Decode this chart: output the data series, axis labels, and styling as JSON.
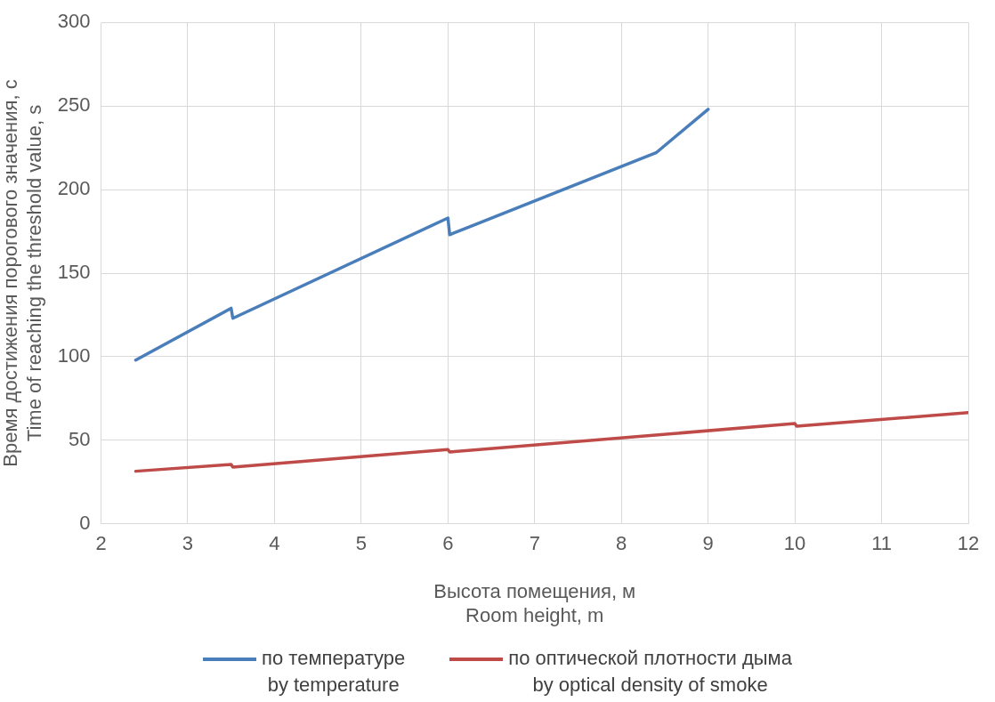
{
  "chart_data": {
    "type": "line",
    "xlabel": "Высота помещения, м\nRoom height, m",
    "ylabel": "Время достижения порогового значения, с\nTime of reaching the threshold value, s",
    "xlim": [
      2,
      12
    ],
    "xticks": [
      2,
      3,
      4,
      5,
      6,
      7,
      8,
      9,
      10,
      11,
      12
    ],
    "ylim": [
      0,
      300
    ],
    "yticks": [
      0,
      50,
      100,
      150,
      200,
      250,
      300
    ],
    "grid": true,
    "legend": "bottom",
    "marker": "none",
    "line_style": "solid",
    "series": [
      {
        "name": "по температуре\nby temperature",
        "color": "#4a7ebb",
        "x": [
          2.4,
          3.5,
          3.52,
          6,
          6.02,
          8.4,
          9
        ],
        "values": [
          98,
          129,
          123,
          183,
          173,
          222,
          248
        ]
      },
      {
        "name": "по оптической плотности дыма\nby optical density of smoke",
        "color": "#be4b48",
        "x": [
          2.4,
          3.5,
          3.52,
          6,
          6.02,
          10,
          10.02,
          12
        ],
        "values": [
          31.5,
          35.5,
          34,
          44.5,
          43,
          60,
          58.5,
          66.5
        ]
      }
    ]
  }
}
